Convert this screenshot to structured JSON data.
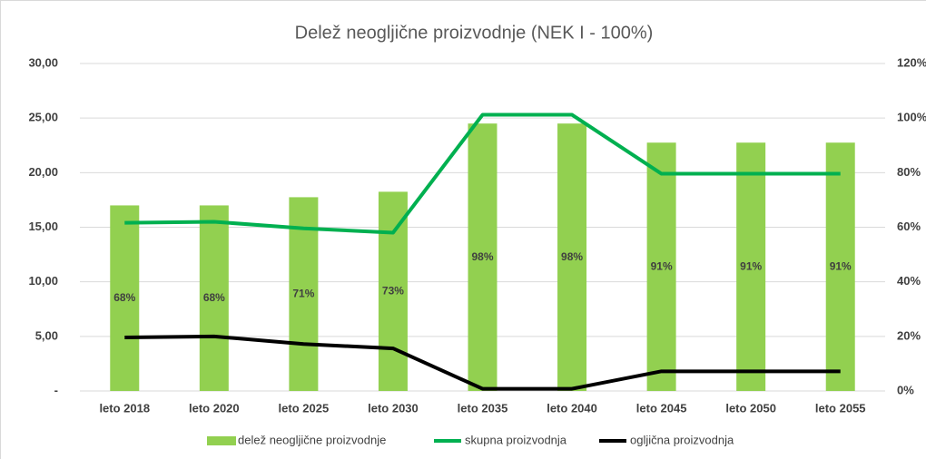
{
  "chart_data": {
    "type": "bar",
    "title": "Delež neogljične proizvodnje (NEK I - 100%)",
    "categories": [
      "leto 2018",
      "leto 2020",
      "leto 2025",
      "leto 2030",
      "leto 2035",
      "leto 2040",
      "leto 2045",
      "leto 2050",
      "leto 2055"
    ],
    "series": [
      {
        "name": "delež neogljične proizvodnje",
        "type": "bar",
        "color": "#92d050",
        "axis": "y2",
        "values": [
          68,
          68,
          71,
          73,
          98,
          98,
          91,
          91,
          91
        ],
        "value_labels": [
          "68%",
          "68%",
          "71%",
          "73%",
          "98%",
          "98%",
          "91%",
          "91%",
          "91%"
        ]
      },
      {
        "name": "skupna proizvodnja",
        "type": "line",
        "color": "#00b050",
        "values": [
          15.4,
          15.5,
          14.9,
          14.5,
          25.3,
          25.3,
          19.9,
          19.9,
          19.9
        ]
      },
      {
        "name": "ogljična proizvodnja",
        "type": "line",
        "color": "#000000",
        "values": [
          4.9,
          5.0,
          4.3,
          3.9,
          0.2,
          0.2,
          1.8,
          1.8,
          1.8
        ]
      }
    ],
    "ylim": [
      0,
      30
    ],
    "yticks": [
      {
        "value": 0,
        "label": "-"
      },
      {
        "value": 5,
        "label": "5,00"
      },
      {
        "value": 10,
        "label": "10,00"
      },
      {
        "value": 15,
        "label": "15,00"
      },
      {
        "value": 20,
        "label": "20,00"
      },
      {
        "value": 25,
        "label": "25,00"
      },
      {
        "value": 30,
        "label": "30,00"
      }
    ],
    "y2lim": [
      0,
      120
    ],
    "y2ticks": [
      {
        "value": 0,
        "label": "0%"
      },
      {
        "value": 20,
        "label": "20%"
      },
      {
        "value": 40,
        "label": "40%"
      },
      {
        "value": 60,
        "label": "60%"
      },
      {
        "value": 80,
        "label": "80%"
      },
      {
        "value": 100,
        "label": "100%"
      },
      {
        "value": 120,
        "label": "120%"
      }
    ],
    "grid": true
  }
}
